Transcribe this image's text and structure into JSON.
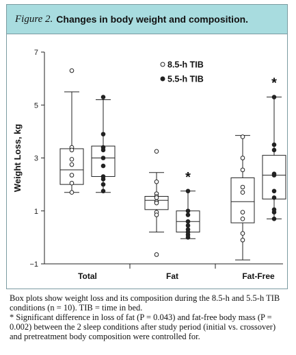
{
  "header": {
    "figure_label": "Figure 2.",
    "title": "Changes in body weight and composition.",
    "background": "#a8dcdf"
  },
  "caption": {
    "line1": "Box plots show weight loss and its composition during the 8.5-h and 5.5-h TIB conditions (n = 10). TIB = time in bed.",
    "line2": "* Significant difference in loss of fat (P = 0.043) and fat-free body mass (P = 0.002) between the 2 sleep conditions after study period (initial vs. crossover) and pretreatment body composition were controlled for."
  },
  "chart_data": {
    "type": "box",
    "title": "",
    "xlabel": "",
    "ylabel": "Weight Loss, kg",
    "ylim": [
      -1,
      7
    ],
    "yticks": [
      -1,
      1,
      3,
      5,
      7
    ],
    "categories": [
      "Total",
      "Fat",
      "Fat-Free"
    ],
    "legend_position": "top-center",
    "series": [
      {
        "name": "8.5-h TIB",
        "marker": "open-circle",
        "boxes": [
          {
            "min": 1.7,
            "q1": 2.0,
            "median": 2.55,
            "q3": 3.35,
            "max": 5.5,
            "points": [
              6.3,
              3.4,
              3.3,
              2.95,
              2.75,
              2.35,
              2.05,
              1.7
            ]
          },
          {
            "min": 0.2,
            "q1": 1.05,
            "median": 1.4,
            "q3": 1.55,
            "max": 2.45,
            "points": [
              3.25,
              2.1,
              1.65,
              1.55,
              1.5,
              1.35,
              1.3,
              0.95,
              0.85,
              -0.65
            ]
          },
          {
            "min": -0.85,
            "q1": 0.55,
            "median": 1.35,
            "q3": 2.25,
            "max": 3.85,
            "points": [
              3.8,
              3.0,
              2.55,
              1.9,
              1.7,
              0.95,
              0.7,
              0.15,
              -0.1
            ]
          }
        ]
      },
      {
        "name": "5.5-h TIB",
        "marker": "filled-circle",
        "boxes": [
          {
            "min": 1.7,
            "q1": 2.3,
            "median": 3.0,
            "q3": 3.45,
            "max": 5.2,
            "points": [
              5.3,
              3.9,
              3.4,
              3.3,
              3.0,
              2.7,
              2.3,
              2.2,
              2.0,
              1.75
            ]
          },
          {
            "min": -0.05,
            "q1": 0.2,
            "median": 0.6,
            "q3": 1.0,
            "max": 1.75,
            "points": [
              1.75,
              1.0,
              0.85,
              0.6,
              0.45,
              0.3,
              0.2,
              0.1,
              0.0
            ]
          },
          {
            "min": 0.7,
            "q1": 1.45,
            "median": 2.35,
            "q3": 3.1,
            "max": 5.3,
            "points": [
              5.3,
              3.5,
              3.3,
              2.4,
              2.35,
              1.75,
              1.5,
              1.05,
              0.95,
              0.7
            ]
          }
        ]
      }
    ],
    "annotations": [
      {
        "text": "*",
        "category": "Fat",
        "series": "5.5-h TIB"
      },
      {
        "text": "*",
        "category": "Fat-Free",
        "series": "5.5-h TIB"
      }
    ]
  }
}
